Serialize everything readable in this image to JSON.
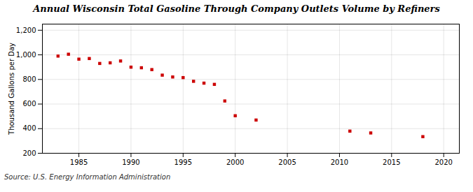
{
  "chart_data": {
    "type": "scatter",
    "title": "Annual Wisconsin Total Gasoline Through Company Outlets Volume by Refiners",
    "ylabel": "Thousand Gallons per Day",
    "annotations": [
      "Source: U.S. Energy Information Administration"
    ],
    "x": [
      1983,
      1984,
      1985,
      1986,
      1987,
      1988,
      1989,
      1990,
      1991,
      1992,
      1993,
      1994,
      1995,
      1996,
      1997,
      1998,
      1999,
      2000,
      2002,
      2011,
      2013,
      2018
    ],
    "values": [
      990,
      1005,
      965,
      970,
      930,
      935,
      950,
      900,
      895,
      880,
      835,
      820,
      815,
      785,
      770,
      760,
      625,
      505,
      470,
      380,
      365,
      335
    ],
    "color": "#cc0000",
    "marker": "square",
    "xlim": [
      1981.5,
      2021.5
    ],
    "ylim": [
      200,
      1250
    ],
    "xticks": [
      1985,
      1990,
      1995,
      2000,
      2005,
      2010,
      2015,
      2020
    ],
    "yticks": [
      200,
      400,
      600,
      800,
      {
        "value": 1000,
        "label": "1,000"
      },
      {
        "value": 1200,
        "label": "1,200"
      }
    ],
    "grid": true
  }
}
